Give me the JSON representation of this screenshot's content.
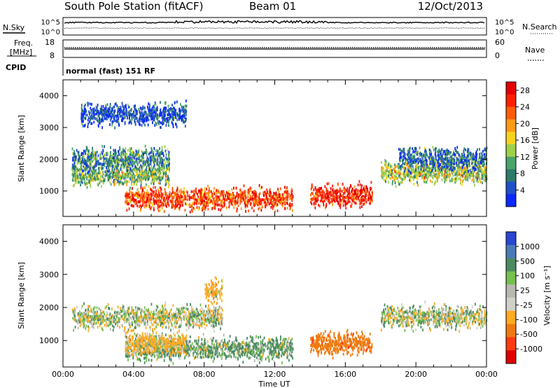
{
  "header": {
    "station": "South Pole Station (fitACF)",
    "beam": "Beam 01",
    "date": "12/Oct/2013"
  },
  "panels": {
    "nsky_label": "N.Sky",
    "nsearch_label": "N.Search",
    "noise_ticks": [
      "10^5",
      "10^0"
    ],
    "freq_label_1": "Freq.",
    "freq_label_2": "[MHz]",
    "freq_ticks": [
      "18",
      "8"
    ],
    "nave_label": "Nave",
    "nave_ticks": [
      "60",
      "0"
    ],
    "cpid_label": "CPID",
    "cpid_text": "normal (fast) 151 RF"
  },
  "colors": {
    "power": [
      "#0a28ff",
      "#1e50c8",
      "#2e7a6a",
      "#48a46a",
      "#9ed04a",
      "#f6d21e",
      "#ff9a14",
      "#ff5a0a",
      "#ff2000",
      "#e60000"
    ],
    "velocity": [
      "#2846d2",
      "#4a7ab6",
      "#4c8a62",
      "#76c04e",
      "#b8b8b0",
      "#d0d0c8",
      "#ffaa20",
      "#f07a10",
      "#ff3a10",
      "#e00000"
    ]
  },
  "chart_data": [
    {
      "type": "heatmap",
      "title": "Power",
      "xlabel": "Time UT",
      "ylabel": "Slant Range [km]",
      "xlim": [
        "00:00",
        "24:00"
      ],
      "ylim": [
        200,
        4500
      ],
      "x_ticks": [
        "00:00",
        "04:00",
        "08:00",
        "12:00",
        "16:00",
        "20:00",
        "00:00"
      ],
      "y_ticks": [
        1000,
        2000,
        3000,
        4000
      ],
      "colorbar": {
        "label": "Power [dB]",
        "ticks": [
          "4",
          "8",
          "12",
          "16",
          "20",
          "24",
          "28"
        ],
        "range": [
          0,
          30
        ]
      },
      "features": [
        {
          "t_start": 0.5,
          "t_end": 6.0,
          "range_km": 1500,
          "power_db": 12
        },
        {
          "t_start": 0.5,
          "t_end": 6.0,
          "range_km": 2000,
          "power_db": 8
        },
        {
          "t_start": 3.5,
          "t_end": 13.0,
          "range_km": 750,
          "power_db": 24
        },
        {
          "t_start": 14.0,
          "t_end": 17.5,
          "range_km": 850,
          "power_db": 26
        },
        {
          "t_start": 18.0,
          "t_end": 24.0,
          "range_km": 1600,
          "power_db": 14
        },
        {
          "t_start": 19.0,
          "t_end": 24.0,
          "range_km": 2000,
          "power_db": 6
        },
        {
          "t_start": 1.0,
          "t_end": 7.0,
          "range_km": 3400,
          "power_db": 4
        }
      ]
    },
    {
      "type": "heatmap",
      "title": "Velocity",
      "xlabel": "Time UT",
      "ylabel": "Slant Range [km]",
      "xlim": [
        "00:00",
        "24:00"
      ],
      "ylim": [
        200,
        4500
      ],
      "x_ticks": [
        "00:00",
        "04:00",
        "08:00",
        "12:00",
        "16:00",
        "20:00",
        "00:00"
      ],
      "y_ticks": [
        1000,
        2000,
        3000,
        4000
      ],
      "colorbar": {
        "label": "Velocity [m s⁻¹]",
        "ticks": [
          "1000",
          "500",
          "100",
          "25",
          "-25",
          "-100",
          "-500",
          "-1000"
        ]
      },
      "features": [
        {
          "t_start": 0.5,
          "t_end": 9.0,
          "range_km": 1700,
          "velocity_ms": 0
        },
        {
          "t_start": 3.5,
          "t_end": 13.0,
          "range_km": 750,
          "velocity_ms": 80
        },
        {
          "t_start": 3.5,
          "t_end": 7.0,
          "range_km": 900,
          "velocity_ms": -120
        },
        {
          "t_start": 14.0,
          "t_end": 17.5,
          "range_km": 900,
          "velocity_ms": -600
        },
        {
          "t_start": 18.0,
          "t_end": 24.0,
          "range_km": 1700,
          "velocity_ms": 0
        },
        {
          "t_start": 8.0,
          "t_end": 9.0,
          "range_km": 2500,
          "velocity_ms": -150
        }
      ]
    }
  ]
}
